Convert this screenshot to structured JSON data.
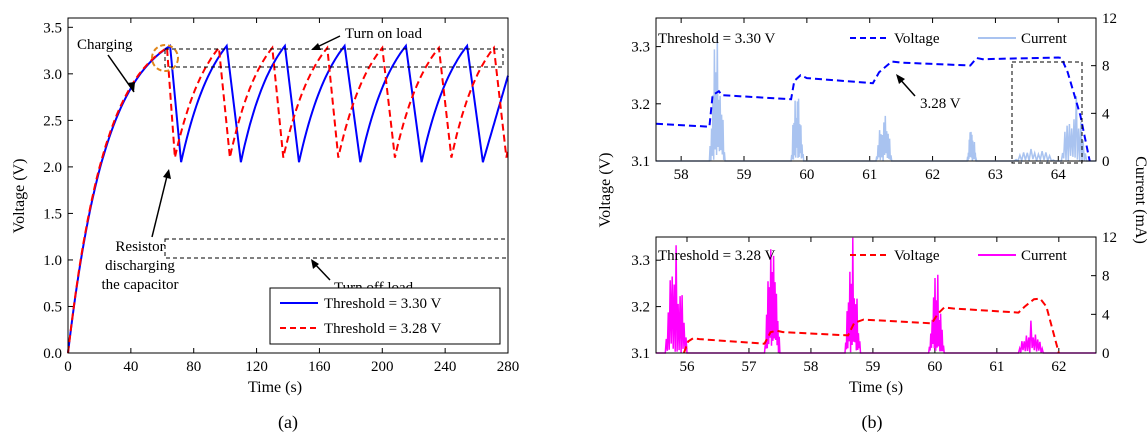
{
  "colors": {
    "thr330": "#0000ff",
    "thr328": "#ff0000",
    "current_b1": "#a9c3f0",
    "current_b2": "#ff00ff",
    "marker": "#e0861a",
    "box": "#000000"
  },
  "chart_data": [
    {
      "type": "line",
      "panel": "(a)",
      "xlabel": "Time (s)",
      "ylabel": "Voltage (V)",
      "xlim": [
        0,
        280
      ],
      "ylim": [
        0,
        3.6
      ],
      "xticks": [
        0,
        40,
        80,
        120,
        160,
        200,
        240,
        280
      ],
      "yticks": [
        0,
        0.5,
        1.0,
        1.5,
        2.0,
        2.5,
        3.0,
        3.5
      ],
      "grid": false,
      "legend_position": "bottom-right",
      "series": [
        {
          "name": "Threshold = 3.30 V",
          "style": "solid",
          "color": "#0000ff",
          "charge_start": 0,
          "v_start": 0,
          "first_peak": {
            "x": 65,
            "y": 3.3
          },
          "peaks": [
            65,
            101,
            138,
            176,
            215,
            254
          ],
          "troughs": [
            72,
            110,
            147,
            186,
            225,
            264
          ],
          "v_high": 3.3,
          "v_low": 2.05,
          "end": {
            "x": 280,
            "y": 2.98
          }
        },
        {
          "name": "Threshold = 3.28 V",
          "style": "dashed",
          "color": "#ff0000",
          "charge_start": 0,
          "v_start": 0,
          "first_peak": {
            "x": 63,
            "y": 3.28
          },
          "peaks": [
            63,
            96,
            130,
            165,
            200,
            236,
            271
          ],
          "troughs": [
            68,
            103,
            137,
            172,
            208,
            244,
            279
          ],
          "v_high": 3.28,
          "v_low": 2.1,
          "end": {
            "x": 280,
            "y": 2.2
          }
        }
      ],
      "annotations": [
        {
          "text": "Charging"
        },
        {
          "text": "Turn on load"
        },
        {
          "text": "Turn off load"
        },
        {
          "lines": [
            "Resistor",
            "discharging",
            "the capacitor"
          ]
        }
      ]
    },
    {
      "type": "line",
      "panel": "(b) top",
      "xlabel": "",
      "ylabel": "Voltage (V)",
      "y2label": "Current (mA)",
      "xlim": [
        57.6,
        64.6
      ],
      "ylim": [
        3.1,
        3.35
      ],
      "y2lim": [
        0,
        12
      ],
      "xticks": [
        58,
        59,
        60,
        61,
        62,
        63,
        64
      ],
      "yticks": [
        3.1,
        3.2,
        3.3
      ],
      "y2ticks": [
        0,
        4,
        8,
        12
      ],
      "legend_position": "top",
      "legend_title": "Threshold = 3.30 V",
      "series": [
        {
          "name": "Voltage",
          "axis": "left",
          "style": "dashed",
          "color": "#0000ff",
          "points": [
            [
              57.6,
              3.165
            ],
            [
              58.45,
              3.16
            ],
            [
              58.5,
              3.215
            ],
            [
              58.6,
              3.222
            ],
            [
              58.65,
              3.215
            ],
            [
              59.75,
              3.208
            ],
            [
              59.8,
              3.24
            ],
            [
              59.9,
              3.25
            ],
            [
              60.0,
              3.245
            ],
            [
              61.05,
              3.236
            ],
            [
              61.15,
              3.255
            ],
            [
              61.35,
              3.274
            ],
            [
              61.5,
              3.272
            ],
            [
              62.6,
              3.267
            ],
            [
              62.7,
              3.28
            ],
            [
              62.8,
              3.278
            ],
            [
              64.0,
              3.281
            ],
            [
              64.05,
              3.28
            ],
            [
              64.15,
              3.255
            ],
            [
              64.35,
              3.18
            ],
            [
              64.5,
              3.1
            ]
          ]
        },
        {
          "name": "Current",
          "axis": "right",
          "style": "solid",
          "color": "#a9c3f0",
          "bursts": [
            {
              "start": 58.45,
              "end": 58.7,
              "peak": 12
            },
            {
              "start": 59.75,
              "end": 59.95,
              "peak": 7.5
            },
            {
              "start": 61.1,
              "end": 61.35,
              "peak": 5
            },
            {
              "start": 62.55,
              "end": 62.7,
              "peak": 3
            },
            {
              "start": 63.3,
              "end": 63.95,
              "peak": 1.2
            },
            {
              "start": 64.05,
              "end": 64.45,
              "peak": 6.5
            }
          ]
        }
      ],
      "annotations": [
        {
          "text": "3.28 V"
        }
      ]
    },
    {
      "type": "line",
      "panel": "(b) bottom",
      "xlabel": "Time (s)",
      "ylabel": "",
      "y2label": "",
      "xlim": [
        55.5,
        62.6
      ],
      "ylim": [
        3.1,
        3.35
      ],
      "y2lim": [
        0,
        12
      ],
      "xticks": [
        56,
        57,
        58,
        59,
        60,
        61,
        62
      ],
      "yticks": [
        3.1,
        3.2,
        3.3
      ],
      "y2ticks": [
        0,
        4,
        8,
        12
      ],
      "legend_position": "top",
      "legend_title": "Threshold = 3.28 V",
      "series": [
        {
          "name": "Voltage",
          "axis": "left",
          "style": "dashed",
          "color": "#ff0000",
          "points": [
            [
              55.95,
              3.1
            ],
            [
              56.02,
              3.125
            ],
            [
              56.1,
              3.132
            ],
            [
              56.2,
              3.13
            ],
            [
              57.25,
              3.12
            ],
            [
              57.35,
              3.145
            ],
            [
              57.45,
              3.148
            ],
            [
              57.55,
              3.145
            ],
            [
              58.6,
              3.138
            ],
            [
              58.7,
              3.165
            ],
            [
              58.85,
              3.172
            ],
            [
              59.95,
              3.164
            ],
            [
              60.05,
              3.185
            ],
            [
              60.15,
              3.198
            ],
            [
              60.3,
              3.196
            ],
            [
              61.35,
              3.187
            ],
            [
              61.45,
              3.2
            ],
            [
              61.6,
              3.216
            ],
            [
              61.7,
              3.217
            ],
            [
              61.8,
              3.2
            ],
            [
              62.0,
              3.1
            ]
          ]
        },
        {
          "name": "Current",
          "axis": "right",
          "style": "solid",
          "color": "#ff00ff",
          "bursts": [
            {
              "start": 55.65,
              "end": 56.0,
              "peak": 12
            },
            {
              "start": 57.25,
              "end": 57.5,
              "peak": 12
            },
            {
              "start": 58.55,
              "end": 58.8,
              "peak": 12
            },
            {
              "start": 59.9,
              "end": 60.15,
              "peak": 9
            },
            {
              "start": 61.35,
              "end": 61.75,
              "peak": 4
            }
          ]
        }
      ]
    }
  ],
  "figure": {
    "label_a": "(a)",
    "label_b": "(b)"
  }
}
